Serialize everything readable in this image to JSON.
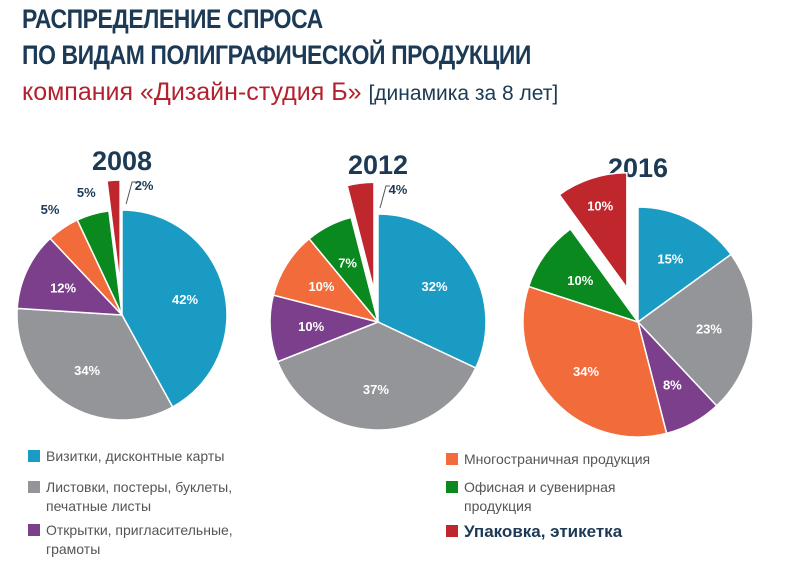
{
  "title_line1": "РАСПРЕДЕЛЕНИЕ СПРОСА",
  "title_line2": "ПО ВИДАМ ПОЛИГРАФИЧЕСКОЙ ПРОДУКЦИИ",
  "subtitle": "компания «Дизайн-студия Б»",
  "subtitle_note": "[динамика за 8 лет]",
  "colors": {
    "blue": "#1a9bc4",
    "gray": "#939598",
    "purple": "#7b3f8c",
    "orange": "#f26b3a",
    "green": "#0a8a1e",
    "red": "#c0272d"
  },
  "chart_data": {
    "type": "pie",
    "categories": [
      "Визитки, дисконтные карты",
      "Листовки, постеры, буклеты, печатные листы",
      "Открытки, пригласительные, грамоты",
      "Многостраничная продукция",
      "Офисная и сувенирная продукция",
      "Упаковка, этикетка"
    ],
    "highlighted_category": "Упаковка, этикетка",
    "legend_placement": "bottom",
    "series": [
      {
        "name": "2008",
        "values": [
          42,
          34,
          12,
          5,
          5,
          2
        ]
      },
      {
        "name": "2012",
        "values": [
          32,
          37,
          10,
          10,
          7,
          4
        ]
      },
      {
        "name": "2016",
        "values": [
          15,
          23,
          8,
          34,
          10,
          10
        ]
      }
    ]
  },
  "legend": [
    {
      "label": "Визитки, дисконтные карты",
      "color": "#1a9bc4"
    },
    {
      "label": "Листовки, постеры, буклеты, печатные листы",
      "color": "#939598"
    },
    {
      "label": "Открытки, пригласительные, грамоты",
      "color": "#7b3f8c"
    },
    {
      "label": "Многостраничная продукция",
      "color": "#f26b3a"
    },
    {
      "label": "Офисная и сувенирная продукция",
      "color": "#0a8a1e"
    },
    {
      "label": "Упаковка, этикетка",
      "color": "#c0272d"
    }
  ]
}
